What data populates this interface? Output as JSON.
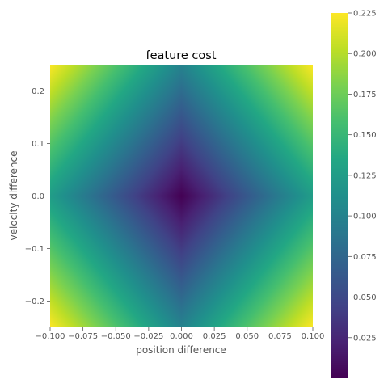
{
  "chart_data": {
    "type": "heatmap",
    "title": "feature cost",
    "xlabel": "position difference",
    "ylabel": "velocity difference",
    "xlim": [
      -0.1,
      0.1
    ],
    "ylim": [
      -0.25,
      0.25
    ],
    "x_ticks": [
      -0.1,
      -0.075,
      -0.05,
      -0.025,
      0.0,
      0.025,
      0.05,
      0.075,
      0.1
    ],
    "x_tick_labels": [
      "−0.100",
      "−0.075",
      "−0.050",
      "−0.025",
      "0.000",
      "0.025",
      "0.050",
      "0.075",
      "0.100"
    ],
    "y_ticks": [
      -0.2,
      -0.1,
      0.0,
      0.1,
      0.2
    ],
    "y_tick_labels": [
      "−0.2",
      "−0.1",
      "0.0",
      "0.1",
      "0.2"
    ],
    "z_min": 0.0,
    "z_max": 0.225,
    "surface": "z = 0.125*|x|/0.1 + 0.1*|y|/0.25",
    "samples": [
      {
        "x": 0.0,
        "y": 0.0,
        "z": 0.0
      },
      {
        "x": 0.1,
        "y": 0.0,
        "z": 0.125
      },
      {
        "x": 0.0,
        "y": 0.25,
        "z": 0.1
      },
      {
        "x": 0.1,
        "y": 0.25,
        "z": 0.225
      },
      {
        "x": -0.1,
        "y": -0.25,
        "z": 0.225
      }
    ],
    "colormap": "viridis",
    "colorbar": {
      "ticks": [
        0.025,
        0.05,
        0.075,
        0.1,
        0.125,
        0.15,
        0.175,
        0.2,
        0.225
      ],
      "tick_labels": [
        "0.025",
        "0.050",
        "0.075",
        "0.100",
        "0.125",
        "0.150",
        "0.175",
        "0.200",
        "0.225"
      ]
    },
    "grid": false
  }
}
